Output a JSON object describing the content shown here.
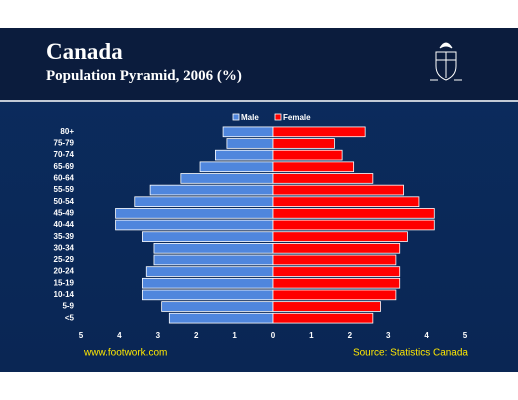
{
  "chart_data": {
    "type": "pyramid",
    "title": "Canada",
    "subtitle": "Population Pyramid, 2006 (%)",
    "categories": [
      "80+",
      "75-79",
      "70-74",
      "65-69",
      "60-64",
      "55-59",
      "50-54",
      "45-49",
      "40-44",
      "35-39",
      "30-34",
      "25-29",
      "20-24",
      "15-19",
      "10-14",
      "5-9",
      "<5"
    ],
    "series": [
      {
        "name": "Male",
        "color": "#4f86dd",
        "values": [
          1.3,
          1.2,
          1.5,
          1.9,
          2.4,
          3.2,
          3.6,
          4.1,
          4.1,
          3.4,
          3.1,
          3.1,
          3.3,
          3.4,
          3.4,
          2.9,
          2.7
        ]
      },
      {
        "name": "Female",
        "color": "#ff0000",
        "values": [
          2.4,
          1.6,
          1.8,
          2.1,
          2.6,
          3.4,
          3.8,
          4.2,
          4.2,
          3.5,
          3.3,
          3.2,
          3.3,
          3.3,
          3.2,
          2.8,
          2.6
        ]
      }
    ],
    "xlim": [
      0,
      5
    ],
    "xticks": [
      0,
      1,
      2,
      3,
      4,
      5
    ],
    "website": "www.footwork.com",
    "source": "Source: Statistics Canada"
  }
}
